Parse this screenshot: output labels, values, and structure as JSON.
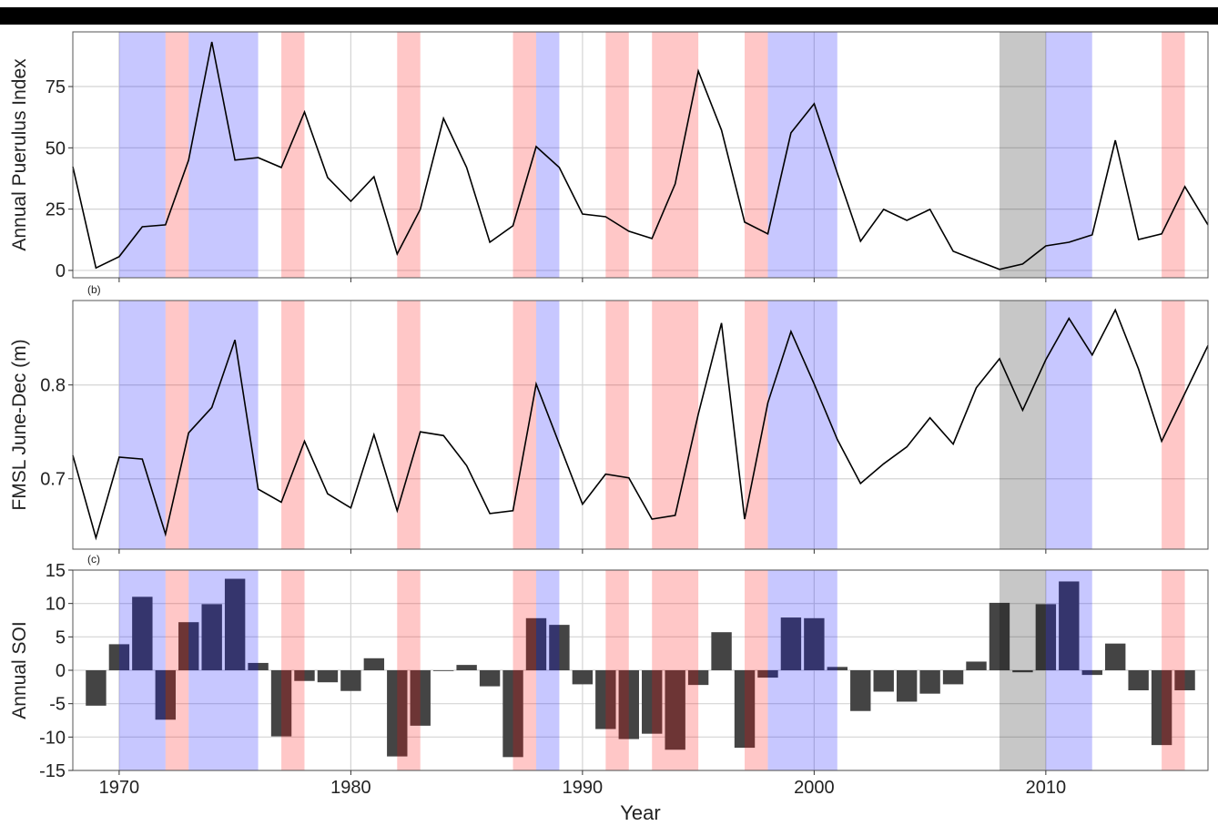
{
  "chart_data": [
    {
      "type": "line",
      "ylabel": "Annual Puerulus Index",
      "x": [
        1968,
        1969,
        1970,
        1971,
        1972,
        1973,
        1974,
        1975,
        1976,
        1977,
        1978,
        1979,
        1980,
        1981,
        1982,
        1983,
        1984,
        1985,
        1986,
        1987,
        1988,
        1989,
        1990,
        1991,
        1992,
        1993,
        1994,
        1995,
        1996,
        1997,
        1998,
        1999,
        2000,
        2001,
        2002,
        2003,
        2004,
        2005,
        2006,
        2007,
        2008,
        2009,
        2010,
        2011,
        2012,
        2013,
        2014,
        2015,
        2016,
        2017
      ],
      "values": [
        42.3,
        1,
        5.6,
        17.8,
        18.6,
        45,
        93.2,
        45,
        46,
        42,
        64.6,
        37.9,
        28.2,
        38.2,
        6.7,
        24.9,
        62,
        42,
        11.5,
        18.2,
        50.5,
        42,
        23,
        21.9,
        16,
        13,
        35.3,
        81.3,
        57.2,
        19.7,
        14.9,
        56.1,
        68,
        39.7,
        11.9,
        24.9,
        20.4,
        24.9,
        7.8,
        4.1,
        0.4,
        2.6,
        10,
        11.5,
        14.5,
        53.1,
        12.6,
        14.9,
        34.2,
        18.6
      ],
      "color": "#000000",
      "xlim": [
        1968,
        2017
      ],
      "xticks": [
        1970,
        1980,
        1990,
        2000,
        2010
      ],
      "ylim": [
        -3,
        97.3
      ],
      "yticks": [
        0,
        25,
        50,
        75
      ],
      "grid": true,
      "shading": [
        {
          "start": 1970,
          "end": 1972,
          "color": "#0000ff"
        },
        {
          "start": 1972,
          "end": 1973,
          "color": "#ff0000"
        },
        {
          "start": 1973,
          "end": 1976,
          "color": "#0000ff"
        },
        {
          "start": 1977,
          "end": 1978,
          "color": "#ff0000"
        },
        {
          "start": 1982,
          "end": 1983,
          "color": "#ff0000"
        },
        {
          "start": 1987,
          "end": 1988,
          "color": "#ff0000"
        },
        {
          "start": 1988,
          "end": 1989,
          "color": "#0000ff"
        },
        {
          "start": 1991,
          "end": 1992,
          "color": "#ff0000"
        },
        {
          "start": 1993,
          "end": 1995,
          "color": "#ff0000"
        },
        {
          "start": 1997,
          "end": 1998,
          "color": "#ff0000"
        },
        {
          "start": 1998,
          "end": 2001,
          "color": "#0000ff"
        },
        {
          "start": 2008,
          "end": 2010,
          "color": "#000000"
        },
        {
          "start": 2010,
          "end": 2012,
          "color": "#0000ff"
        },
        {
          "start": 2015,
          "end": 2016,
          "color": "#ff0000"
        }
      ]
    },
    {
      "type": "line",
      "panel_label": "(b)",
      "ylabel": "FMSL June-Dec (m)",
      "x": [
        1968,
        1969,
        1970,
        1971,
        1972,
        1973,
        1974,
        1975,
        1976,
        1977,
        1978,
        1979,
        1980,
        1981,
        1982,
        1983,
        1984,
        1985,
        1986,
        1987,
        1988,
        1989,
        1990,
        1991,
        1992,
        1993,
        1994,
        1995,
        1996,
        1997,
        1998,
        1999,
        2000,
        2001,
        2002,
        2003,
        2004,
        2005,
        2006,
        2007,
        2008,
        2009,
        2010,
        2011,
        2012,
        2013,
        2014,
        2015,
        2016,
        2017
      ],
      "values": [
        0.725,
        0.637,
        0.723,
        0.721,
        0.641,
        0.749,
        0.776,
        0.848,
        0.689,
        0.675,
        0.74,
        0.684,
        0.669,
        0.747,
        0.666,
        0.75,
        0.746,
        0.714,
        0.663,
        0.666,
        0.801,
        0.737,
        0.673,
        0.705,
        0.701,
        0.657,
        0.661,
        0.769,
        0.866,
        0.657,
        0.781,
        0.857,
        0.801,
        0.742,
        0.695,
        0.716,
        0.734,
        0.765,
        0.737,
        0.797,
        0.828,
        0.773,
        0.827,
        0.871,
        0.832,
        0.88,
        0.817,
        0.74,
        0.791,
        0.842
      ],
      "color": "#000000",
      "xlim": [
        1968,
        2017
      ],
      "xticks": [
        1970,
        1980,
        1990,
        2000,
        2010
      ],
      "ylim": [
        0.625,
        0.89
      ],
      "yticks": [
        0.7,
        0.8
      ],
      "grid": true,
      "shading": [
        {
          "start": 1970,
          "end": 1972,
          "color": "#0000ff"
        },
        {
          "start": 1972,
          "end": 1973,
          "color": "#ff0000"
        },
        {
          "start": 1973,
          "end": 1976,
          "color": "#0000ff"
        },
        {
          "start": 1977,
          "end": 1978,
          "color": "#ff0000"
        },
        {
          "start": 1982,
          "end": 1983,
          "color": "#ff0000"
        },
        {
          "start": 1987,
          "end": 1988,
          "color": "#ff0000"
        },
        {
          "start": 1988,
          "end": 1989,
          "color": "#0000ff"
        },
        {
          "start": 1991,
          "end": 1992,
          "color": "#ff0000"
        },
        {
          "start": 1993,
          "end": 1995,
          "color": "#ff0000"
        },
        {
          "start": 1997,
          "end": 1998,
          "color": "#ff0000"
        },
        {
          "start": 1998,
          "end": 2001,
          "color": "#0000ff"
        },
        {
          "start": 2008,
          "end": 2010,
          "color": "#000000"
        },
        {
          "start": 2010,
          "end": 2012,
          "color": "#0000ff"
        },
        {
          "start": 2015,
          "end": 2016,
          "color": "#ff0000"
        }
      ]
    },
    {
      "type": "bar",
      "panel_label": "(c)",
      "ylabel": "Annual SOI",
      "xlabel": "Year",
      "x": [
        1969,
        1970,
        1971,
        1972,
        1973,
        1974,
        1975,
        1976,
        1977,
        1978,
        1979,
        1980,
        1981,
        1982,
        1983,
        1984,
        1985,
        1986,
        1987,
        1988,
        1989,
        1990,
        1991,
        1992,
        1993,
        1994,
        1995,
        1996,
        1997,
        1998,
        1999,
        2000,
        2001,
        2002,
        2003,
        2004,
        2005,
        2006,
        2007,
        2008,
        2009,
        2010,
        2011,
        2012,
        2013,
        2014,
        2015,
        2016
      ],
      "values": [
        -5.3,
        3.9,
        11,
        -7.4,
        7.2,
        9.9,
        13.7,
        1.1,
        -9.9,
        -1.6,
        -1.8,
        -3.1,
        1.8,
        -12.9,
        -8.3,
        -0.1,
        0.8,
        -2.4,
        -13,
        7.8,
        6.8,
        -2.1,
        -8.8,
        -10.3,
        -9.5,
        -11.9,
        -2.2,
        5.7,
        -11.6,
        -1.1,
        7.9,
        7.8,
        0.5,
        -6.1,
        -3.2,
        -4.7,
        -3.5,
        -2.1,
        1.3,
        10.1,
        -0.3,
        9.9,
        13.3,
        -0.7,
        4,
        -3,
        -11.2,
        -3.0
      ],
      "color": "#444444",
      "xlim": [
        1968,
        2017
      ],
      "xticks": [
        1970,
        1980,
        1990,
        2000,
        2010
      ],
      "ylim": [
        -15,
        15
      ],
      "yticks": [
        -15,
        -10,
        -5,
        0,
        5,
        10,
        15
      ],
      "grid": true,
      "shading": [
        {
          "start": 1970,
          "end": 1972,
          "color": "#0000ff"
        },
        {
          "start": 1972,
          "end": 1973,
          "color": "#ff0000"
        },
        {
          "start": 1973,
          "end": 1976,
          "color": "#0000ff"
        },
        {
          "start": 1977,
          "end": 1978,
          "color": "#ff0000"
        },
        {
          "start": 1982,
          "end": 1983,
          "color": "#ff0000"
        },
        {
          "start": 1987,
          "end": 1988,
          "color": "#ff0000"
        },
        {
          "start": 1988,
          "end": 1989,
          "color": "#0000ff"
        },
        {
          "start": 1991,
          "end": 1992,
          "color": "#ff0000"
        },
        {
          "start": 1993,
          "end": 1995,
          "color": "#ff0000"
        },
        {
          "start": 1997,
          "end": 1998,
          "color": "#ff0000"
        },
        {
          "start": 1998,
          "end": 2001,
          "color": "#0000ff"
        },
        {
          "start": 2008,
          "end": 2010,
          "color": "#000000"
        },
        {
          "start": 2010,
          "end": 2012,
          "color": "#0000ff"
        },
        {
          "start": 2015,
          "end": 2016,
          "color": "#ff0000"
        }
      ]
    }
  ]
}
